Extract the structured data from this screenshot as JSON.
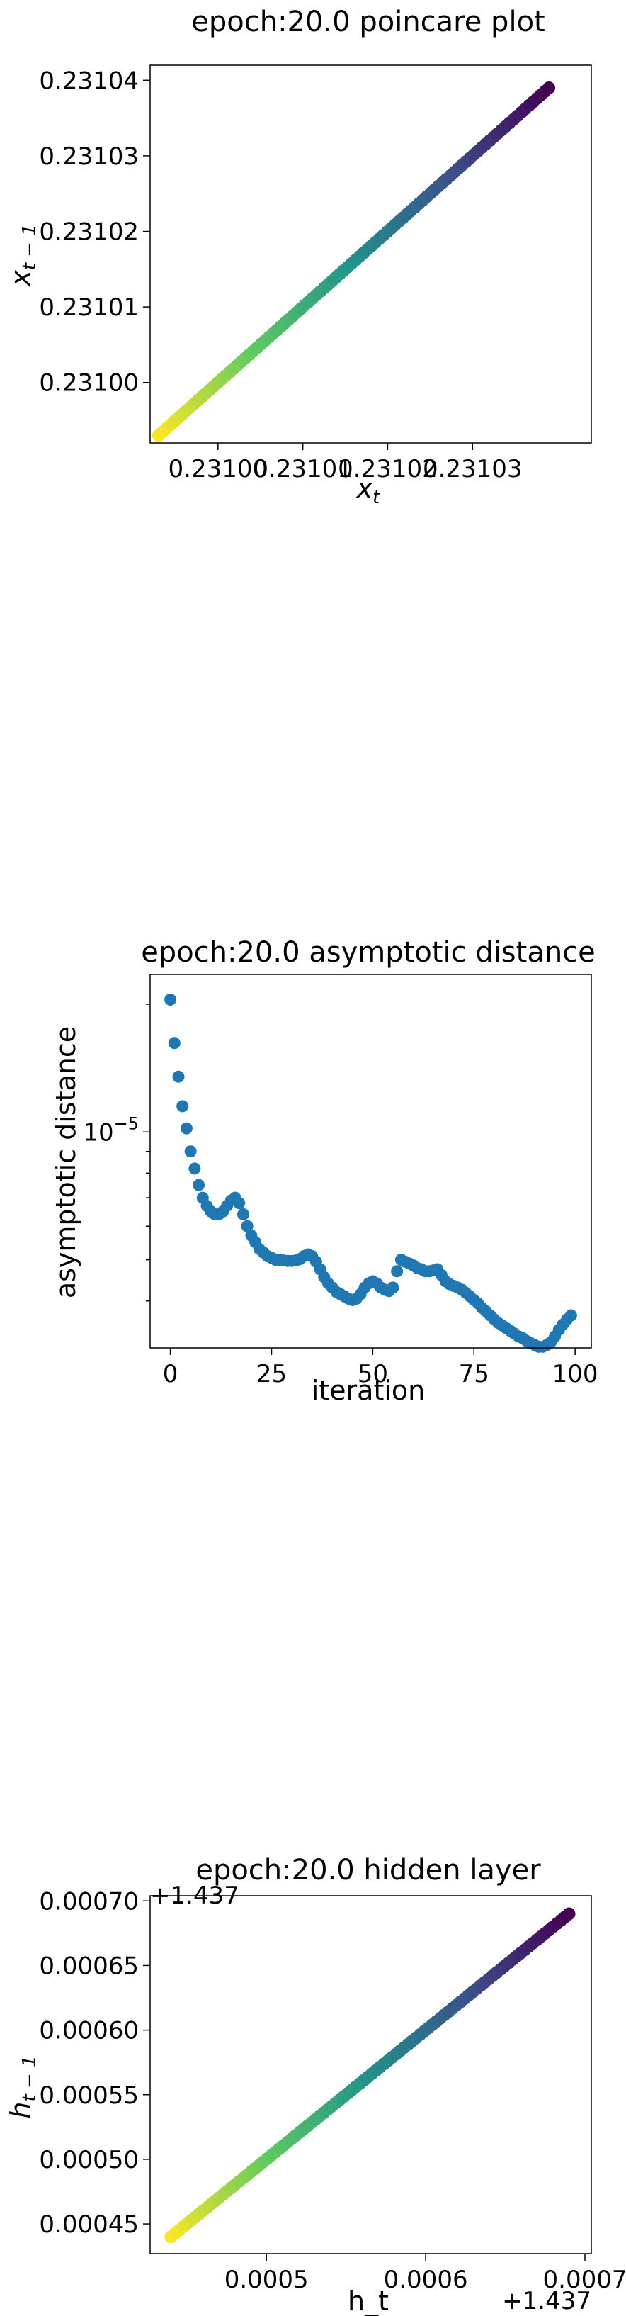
{
  "chart_data": [
    {
      "type": "scatter",
      "title": "epoch:20.0 poincare plot",
      "xlabel": "x_t",
      "ylabel": "x_{t-1}",
      "xlim": [
        0.230992,
        0.231044
      ],
      "ylim": [
        0.230992,
        0.231042
      ],
      "xticks": [
        {
          "value": 0.231,
          "label": "0.23100"
        },
        {
          "value": 0.23101,
          "label": "0.23101"
        },
        {
          "value": 0.23102,
          "label": "0.23102"
        },
        {
          "value": 0.23103,
          "label": "0.23103"
        }
      ],
      "yticks": [
        {
          "value": 0.231,
          "label": "0.23100"
        },
        {
          "value": 0.23101,
          "label": "0.23101"
        },
        {
          "value": 0.23102,
          "label": "0.23102"
        },
        {
          "value": 0.23103,
          "label": "0.23103"
        },
        {
          "value": 0.23104,
          "label": "0.23104"
        }
      ],
      "points": {
        "x_start": 0.230993,
        "x_end": 0.231039,
        "y_start": 0.230993,
        "y_end": 0.231039,
        "count": 100
      },
      "colormap": [
        "#440154",
        "#3b528b",
        "#21918c",
        "#5ec962",
        "#fde725"
      ],
      "color_order": "purple at upper right, yellow at lower left",
      "grid": false
    },
    {
      "type": "scatter",
      "title": "epoch:20.0 asymptotic distance",
      "xlabel": "iteration",
      "ylabel": "asymptotic distance",
      "xlim": [
        -5,
        104
      ],
      "ylim": [
        3.1e-06,
        2.35e-05
      ],
      "yscale": "log",
      "xticks": [
        {
          "value": 0,
          "label": "0"
        },
        {
          "value": 25,
          "label": "25"
        },
        {
          "value": 50,
          "label": "50"
        },
        {
          "value": 75,
          "label": "75"
        },
        {
          "value": 100,
          "label": "100"
        }
      ],
      "yticks": [
        {
          "value": 1e-05,
          "label": "10",
          "exponent": "−5"
        }
      ],
      "color": "#1f77b4",
      "grid": false,
      "x": [
        0,
        1,
        2,
        3,
        4,
        5,
        6,
        7,
        8,
        9,
        10,
        11,
        12,
        13,
        14,
        15,
        16,
        17,
        18,
        19,
        20,
        21,
        22,
        23,
        24,
        25,
        26,
        27,
        28,
        29,
        30,
        31,
        32,
        33,
        34,
        35,
        36,
        37,
        38,
        39,
        40,
        41,
        42,
        43,
        44,
        45,
        46,
        47,
        48,
        49,
        50,
        51,
        52,
        53,
        54,
        55,
        56,
        57,
        58,
        59,
        60,
        61,
        62,
        63,
        64,
        65,
        66,
        67,
        68,
        69,
        70,
        71,
        72,
        73,
        74,
        75,
        76,
        77,
        78,
        79,
        80,
        81,
        82,
        83,
        84,
        85,
        86,
        87,
        88,
        89,
        90,
        91,
        92,
        93,
        94,
        95,
        96,
        97,
        98,
        99
      ],
      "y": [
        2.05e-05,
        1.62e-05,
        1.35e-05,
        1.15e-05,
        1.02e-05,
        9e-06,
        8.2e-06,
        7.5e-06,
        7e-06,
        6.7e-06,
        6.5e-06,
        6.4e-06,
        6.4e-06,
        6.5e-06,
        6.7e-06,
        6.9e-06,
        7e-06,
        6.8e-06,
        6.4e-06,
        6e-06,
        5.7e-06,
        5.5e-06,
        5.3e-06,
        5.2e-06,
        5.1e-06,
        5.05e-06,
        5e-06,
        5e-06,
        4.98e-06,
        4.97e-06,
        4.97e-06,
        4.98e-06,
        5.02e-06,
        5.1e-06,
        5.15e-06,
        5.1e-06,
        4.95e-06,
        4.75e-06,
        4.55e-06,
        4.4e-06,
        4.3e-06,
        4.2e-06,
        4.15e-06,
        4.1e-06,
        4.05e-06,
        4.02e-06,
        4.05e-06,
        4.15e-06,
        4.3e-06,
        4.4e-06,
        4.45e-06,
        4.4e-06,
        4.3e-06,
        4.25e-06,
        4.22e-06,
        4.3e-06,
        4.7e-06,
        5e-06,
        4.95e-06,
        4.9e-06,
        4.85e-06,
        4.78e-06,
        4.75e-06,
        4.7e-06,
        4.7e-06,
        4.72e-06,
        4.75e-06,
        4.6e-06,
        4.45e-06,
        4.38e-06,
        4.34e-06,
        4.3e-06,
        4.25e-06,
        4.18e-06,
        4.1e-06,
        4.02e-06,
        3.95e-06,
        3.85e-06,
        3.78e-06,
        3.7e-06,
        3.62e-06,
        3.55e-06,
        3.5e-06,
        3.45e-06,
        3.4e-06,
        3.35e-06,
        3.3e-06,
        3.27e-06,
        3.22e-06,
        3.18e-06,
        3.15e-06,
        3.12e-06,
        3.12e-06,
        3.15e-06,
        3.2e-06,
        3.3e-06,
        3.42e-06,
        3.52e-06,
        3.62e-06,
        3.7e-06
      ]
    },
    {
      "type": "scatter",
      "title": "epoch:20.0 hidden layer",
      "xlabel": "h_t",
      "ylabel": "h_{t-1}",
      "x_offset_label": "+1.437",
      "y_offset_label": "+1.437",
      "xlim": [
        0.000427,
        0.000704
      ],
      "ylim": [
        0.000427,
        0.000704
      ],
      "xticks": [
        {
          "value": 0.0005,
          "label": "0.0005"
        },
        {
          "value": 0.0006,
          "label": "0.0006"
        },
        {
          "value": 0.0007,
          "label": "0.0007"
        }
      ],
      "yticks": [
        {
          "value": 0.00045,
          "label": "0.00045"
        },
        {
          "value": 0.0005,
          "label": "0.00050"
        },
        {
          "value": 0.00055,
          "label": "0.00055"
        },
        {
          "value": 0.0006,
          "label": "0.00060"
        },
        {
          "value": 0.00065,
          "label": "0.00065"
        },
        {
          "value": 0.0007,
          "label": "0.00070"
        }
      ],
      "points": {
        "x_start": 0.00044,
        "x_end": 0.00069,
        "y_start": 0.00044,
        "y_end": 0.00069,
        "count": 100
      },
      "colormap": [
        "#440154",
        "#3b528b",
        "#21918c",
        "#5ec962",
        "#fde725"
      ],
      "color_order": "purple at upper right, yellow at lower left",
      "grid": false
    }
  ]
}
